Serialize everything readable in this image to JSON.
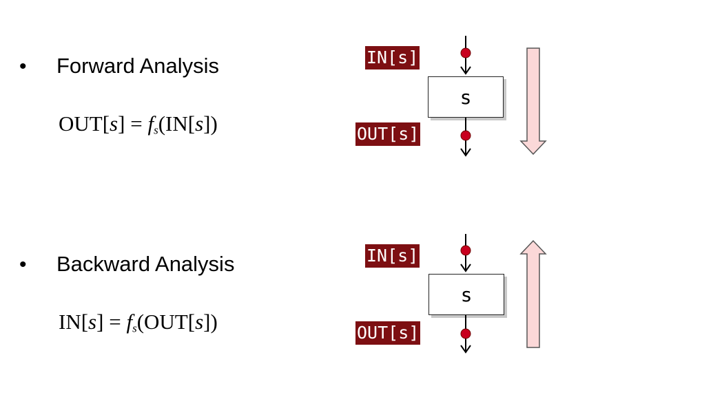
{
  "forward": {
    "heading": "Forward Analysis",
    "formula": {
      "lhs": "OUT[",
      "lhs_var": "s",
      "lhs_end": "]",
      "eq": " = ",
      "fn": "f",
      "fn_sub": "s",
      "arg_open": "(IN[",
      "arg_var": "s",
      "arg_close": "])"
    },
    "in_label": "IN[s]",
    "out_label": "OUT[s]",
    "node_label": "s",
    "flow_direction": "down"
  },
  "backward": {
    "heading": "Backward Analysis",
    "formula": {
      "lhs": "IN[",
      "lhs_var": "s",
      "lhs_end": "]",
      "eq": " = ",
      "fn": "f",
      "fn_sub": "s",
      "arg_open": "(OUT[",
      "arg_var": "s",
      "arg_close": "])"
    },
    "in_label": "IN[s]",
    "out_label": "OUT[s]",
    "node_label": "s",
    "flow_direction": "up"
  },
  "bullet": "•",
  "colors": {
    "label_bg": "#7d0f12",
    "dot": "#c8001e",
    "flow_arrow_fill": "#fbd8d8"
  }
}
